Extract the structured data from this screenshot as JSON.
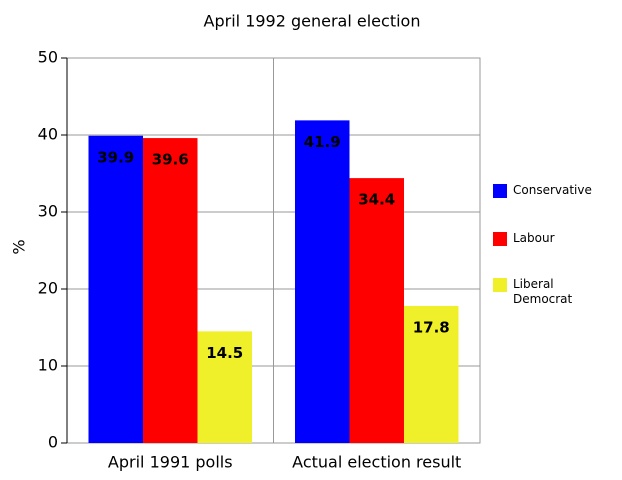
{
  "chart_data": {
    "type": "bar",
    "title": "April 1992 general election",
    "y_label": "%",
    "categories": [
      "April 1991 polls",
      "Actual election result"
    ],
    "series": [
      {
        "name": "Conservative",
        "color": "#0000ff",
        "values": [
          39.9,
          41.9
        ]
      },
      {
        "name": "Labour",
        "color": "#ff0000",
        "values": [
          39.6,
          34.4
        ]
      },
      {
        "name": "Liberal Democrat",
        "color": "#f0f02a",
        "values": [
          14.5,
          17.8
        ]
      }
    ],
    "ylim": [
      0,
      50
    ],
    "yticks": [
      0,
      10,
      20,
      30,
      40,
      50
    ],
    "grid": true,
    "legend": "right"
  }
}
